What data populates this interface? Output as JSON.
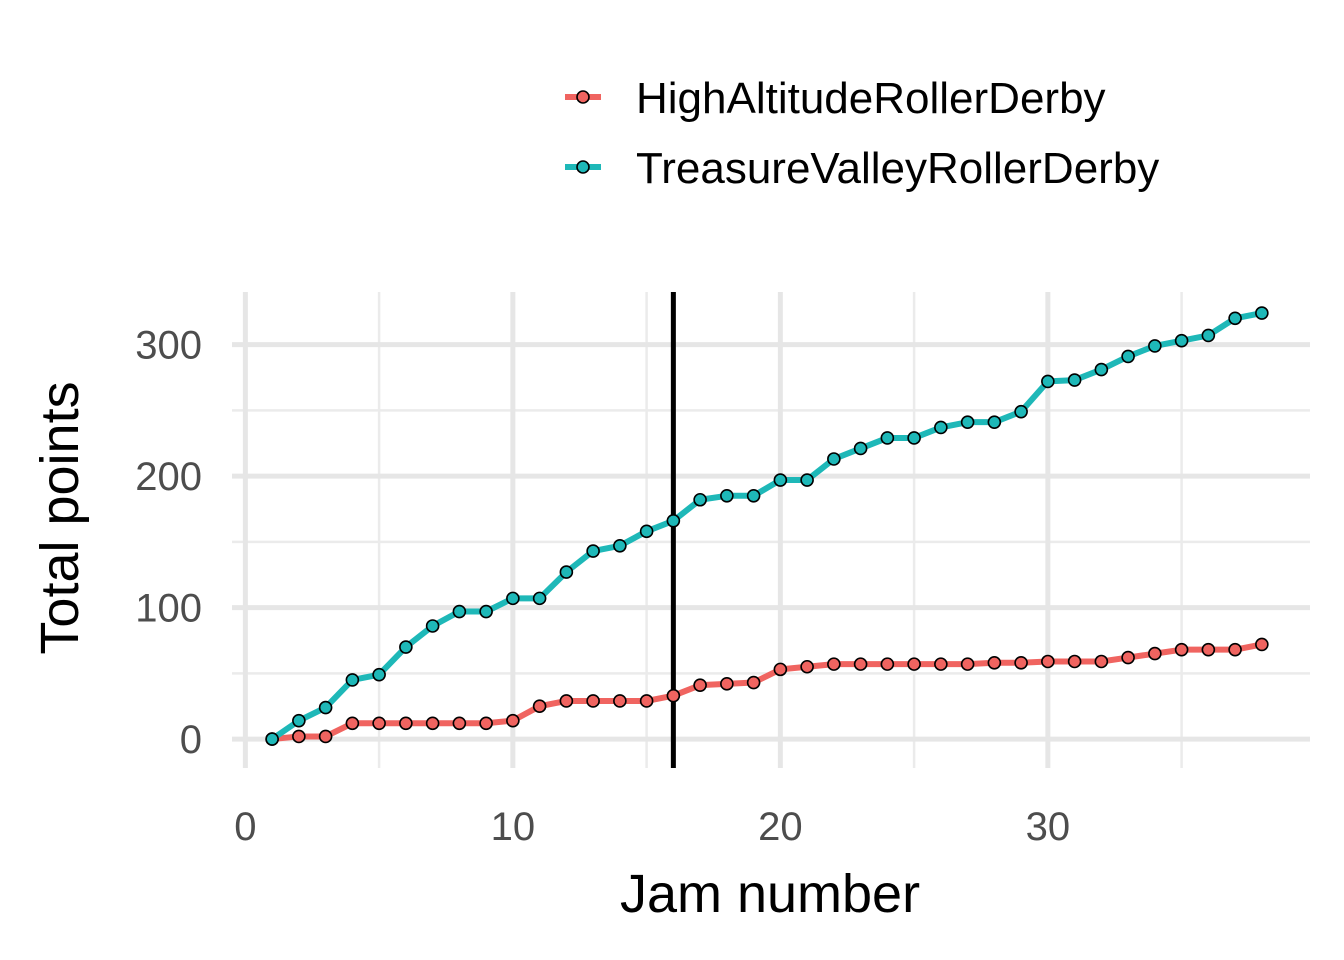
{
  "chart_data": {
    "type": "line",
    "title": "",
    "xlabel": "Jam number",
    "ylabel": "Total points",
    "xlim": [
      -0.5,
      39.8
    ],
    "ylim": [
      -22,
      340
    ],
    "x_ticks": [
      0,
      10,
      20,
      30
    ],
    "x_tick_labels": [
      "0",
      "10",
      "20",
      "30"
    ],
    "x_minor_ticks": [
      5,
      15,
      25,
      35
    ],
    "y_ticks": [
      0,
      100,
      200,
      300
    ],
    "y_tick_labels": [
      "0",
      "100",
      "200",
      "300"
    ],
    "y_minor_ticks": [
      50,
      150,
      250
    ],
    "grid": true,
    "legend_position": "top",
    "vline_x": 16,
    "x": [
      1,
      2,
      3,
      4,
      5,
      6,
      7,
      8,
      9,
      10,
      11,
      12,
      13,
      14,
      15,
      16,
      17,
      18,
      19,
      20,
      21,
      22,
      23,
      24,
      25,
      26,
      27,
      28,
      29,
      30,
      31,
      32,
      33,
      34,
      35,
      36,
      37,
      38
    ],
    "series": [
      {
        "name": "HighAltitudeRollerDerby",
        "color": "#f06460",
        "values": [
          0,
          2,
          2,
          12,
          12,
          12,
          12,
          12,
          12,
          14,
          25,
          29,
          29,
          29,
          29,
          33,
          41,
          42,
          43,
          53,
          55,
          57,
          57,
          57,
          57,
          57,
          57,
          58,
          58,
          59,
          59,
          59,
          62,
          65,
          68,
          68,
          68,
          72
        ]
      },
      {
        "name": "TreasureValleyRollerDerby",
        "color": "#1eb8b8",
        "values": [
          0,
          14,
          24,
          45,
          49,
          70,
          86,
          97,
          97,
          107,
          107,
          127,
          143,
          147,
          158,
          166,
          182,
          185,
          185,
          197,
          197,
          213,
          221,
          229,
          229,
          237,
          241,
          241,
          249,
          272,
          273,
          281,
          291,
          299,
          303,
          307,
          320,
          324
        ]
      }
    ]
  }
}
